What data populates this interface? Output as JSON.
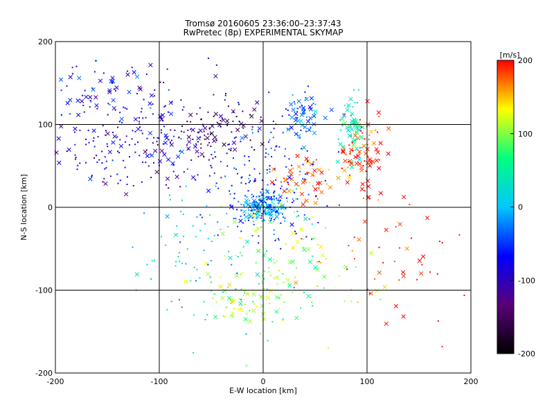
{
  "chart_data": {
    "type": "scatter",
    "title": "Tromsø 20160605 23:36:00–23:37:43",
    "subtitle": "RwPretec (8p) EXPERIMENTAL SKYMAP",
    "xlabel": "E-W location [km]",
    "ylabel": "N-S location [km]",
    "xlim": [
      -200,
      200
    ],
    "ylim": [
      -200,
      200
    ],
    "xticks": [
      "-200",
      "-100",
      "0",
      "100",
      "200"
    ],
    "yticks": [
      "-200",
      "-100",
      "0",
      "100",
      "200"
    ],
    "grid": true,
    "colorbar": {
      "label": "[m/s]",
      "range": [
        -200,
        200
      ],
      "ticks": [
        "200",
        "100",
        "0",
        "-100",
        "-200"
      ],
      "colormap": [
        "#000000",
        "#5a007a",
        "#0000ff",
        "#00c8ff",
        "#00ff7f",
        "#ffff00",
        "#ff0000"
      ]
    },
    "clusters": [
      {
        "x": -100,
        "y": 80,
        "sx": 55,
        "sy": 35,
        "v": -90,
        "n": 260,
        "cross_frac": 0.25
      },
      {
        "x": -40,
        "y": 100,
        "sx": 25,
        "sy": 18,
        "v": -140,
        "n": 70,
        "cross_frac": 0.45
      },
      {
        "x": -150,
        "y": 140,
        "sx": 30,
        "sy": 20,
        "v": -75,
        "n": 50,
        "cross_frac": 0.5
      },
      {
        "x": 0,
        "y": 0,
        "sx": 12,
        "sy": 8,
        "v": -15,
        "n": 220,
        "cross_frac": 0.15
      },
      {
        "x": 40,
        "y": 110,
        "sx": 8,
        "sy": 15,
        "v": -30,
        "n": 60,
        "cross_frac": 0.4
      },
      {
        "x": 85,
        "y": 90,
        "sx": 6,
        "sy": 20,
        "v": 45,
        "n": 70,
        "cross_frac": 0.6
      },
      {
        "x": 95,
        "y": 65,
        "sx": 10,
        "sy": 25,
        "v": 190,
        "n": 80,
        "cross_frac": 0.6
      },
      {
        "x": 40,
        "y": 35,
        "sx": 14,
        "sy": 15,
        "v": 180,
        "n": 55,
        "cross_frac": 0.55
      },
      {
        "x": 20,
        "y": -70,
        "sx": 35,
        "sy": 40,
        "v": 110,
        "n": 110,
        "cross_frac": 0.25
      },
      {
        "x": -15,
        "y": -115,
        "sx": 20,
        "sy": 15,
        "v": 100,
        "n": 60,
        "cross_frac": 0.3
      },
      {
        "x": 130,
        "y": -75,
        "sx": 35,
        "sy": 45,
        "v": 195,
        "n": 50,
        "cross_frac": 0.35
      },
      {
        "x": 0,
        "y": 30,
        "sx": 30,
        "sy": 40,
        "v": -60,
        "n": 150,
        "cross_frac": 0.05
      },
      {
        "x": -50,
        "y": -60,
        "sx": 45,
        "sy": 45,
        "v": 20,
        "n": 90,
        "cross_frac": 0.1
      }
    ]
  }
}
